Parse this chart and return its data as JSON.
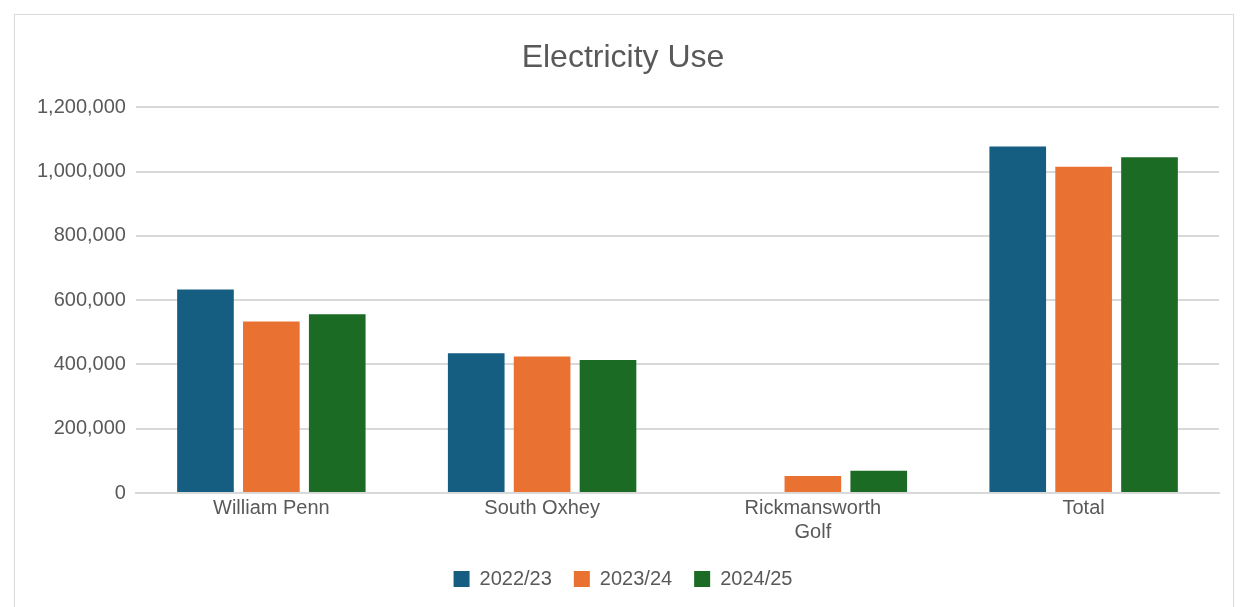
{
  "chart_data": {
    "type": "bar",
    "title": "Electricity Use",
    "categories": [
      "William Penn",
      "South Oxhey",
      "Rickmansworth Golf",
      "Total"
    ],
    "series": [
      {
        "name": "2022/23",
        "color": "#155e82",
        "values": [
          633000,
          435000,
          null,
          1078000
        ]
      },
      {
        "name": "2023/24",
        "color": "#e97132",
        "values": [
          534000,
          425000,
          53000,
          1015000
        ]
      },
      {
        "name": "2024/25",
        "color": "#1b6b24",
        "values": [
          556000,
          414000,
          69000,
          1045000
        ]
      }
    ],
    "ylim": [
      0,
      1200000
    ],
    "yticks": [
      0,
      {
        "value": 200000,
        "label": "200,000"
      },
      {
        "value": 400000,
        "label": "400,000"
      },
      {
        "value": 600000,
        "label": "600,000"
      },
      {
        "value": 800000,
        "label": "800,000"
      },
      {
        "value": 1000000,
        "label": "1,000,000"
      },
      {
        "value": 1200000,
        "label": "1,200,000"
      }
    ],
    "grid": "y",
    "legend": "bottom"
  }
}
